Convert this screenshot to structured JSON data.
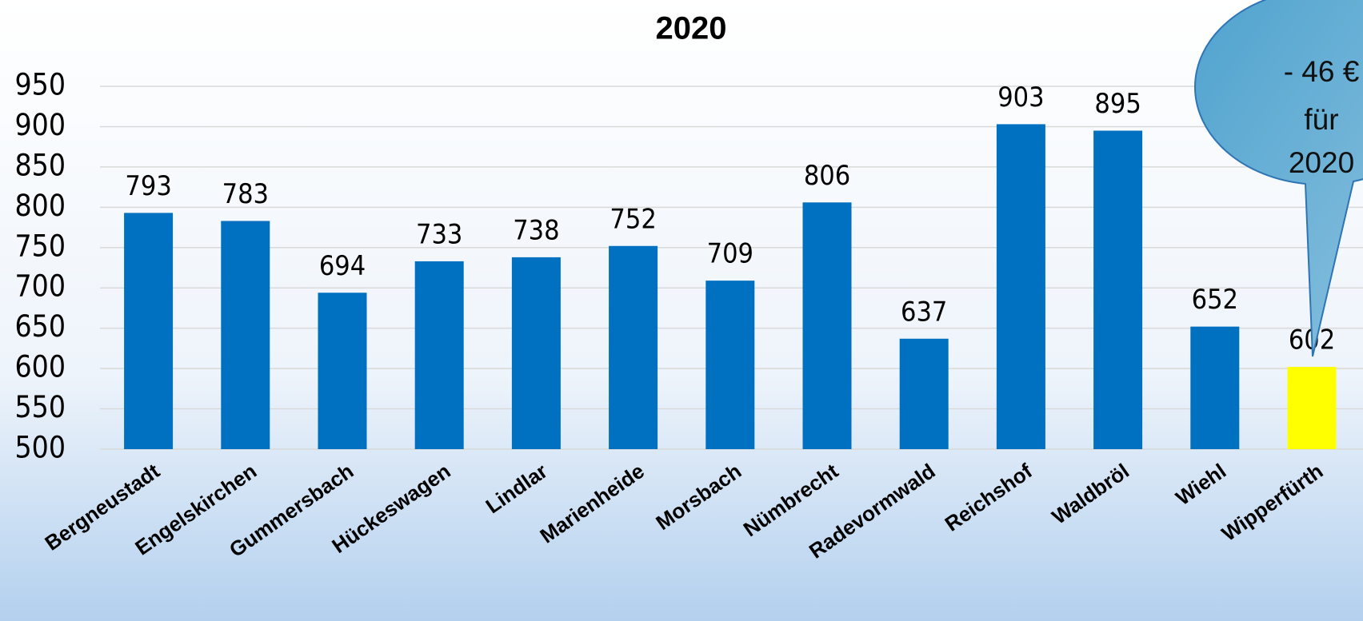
{
  "chart_data": {
    "type": "bar",
    "title": "2020",
    "categories": [
      "Bergneustadt",
      "Engelskirchen",
      "Gummersbach",
      "Hückeswagen",
      "Lindlar",
      "Marienheide",
      "Morsbach",
      "Nümbrecht",
      "Radevormwald",
      "Reichshof",
      "Waldbröl",
      "Wiehl",
      "Wipperfürth"
    ],
    "values": [
      793,
      783,
      694,
      733,
      738,
      752,
      709,
      806,
      637,
      903,
      895,
      652,
      602
    ],
    "colors": [
      "#0070c0",
      "#0070c0",
      "#0070c0",
      "#0070c0",
      "#0070c0",
      "#0070c0",
      "#0070c0",
      "#0070c0",
      "#0070c0",
      "#0070c0",
      "#0070c0",
      "#0070c0",
      "#ffff00"
    ],
    "ylim": [
      500,
      950
    ],
    "yticks": [
      500,
      550,
      600,
      650,
      700,
      750,
      800,
      850,
      900,
      950
    ],
    "grid": true,
    "annotation": [
      "- 46 €",
      "für",
      "2020"
    ]
  }
}
